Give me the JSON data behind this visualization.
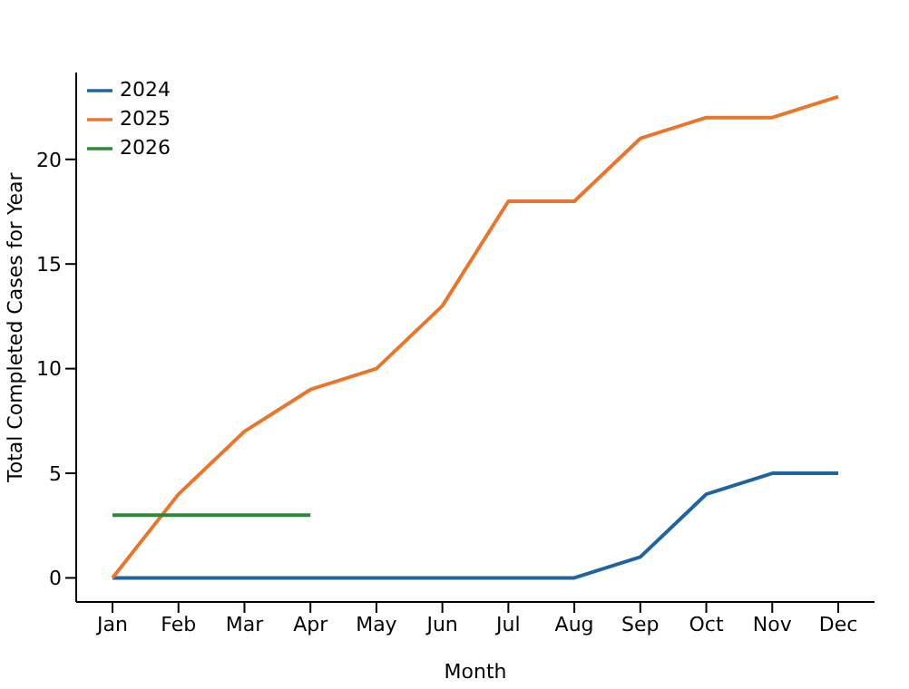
{
  "chart_data": {
    "type": "line",
    "xlabel": "Month",
    "ylabel": "Total Completed Cases for Year",
    "categories": [
      "Jan",
      "Feb",
      "Mar",
      "Apr",
      "May",
      "Jun",
      "Jul",
      "Aug",
      "Sep",
      "Oct",
      "Nov",
      "Dec"
    ],
    "series": [
      {
        "name": "2024",
        "color": "#1f63a3",
        "values": [
          0,
          0,
          0,
          0,
          0,
          0,
          0,
          0,
          1,
          4,
          5,
          5
        ]
      },
      {
        "name": "2025",
        "color": "#e8762d",
        "values": [
          0,
          4,
          7,
          9,
          10,
          13,
          18,
          18,
          21,
          22,
          22,
          23
        ]
      },
      {
        "name": "2026",
        "color": "#2a8a3a",
        "values": [
          3,
          3,
          3,
          3,
          null,
          null,
          null,
          null,
          null,
          null,
          null,
          null
        ]
      }
    ],
    "ylim": [
      -1.15,
      24.15
    ],
    "yticks": [
      0,
      5,
      10,
      15,
      20
    ],
    "grid": false,
    "legend": "top left",
    "marker": "none",
    "line_style": "solid"
  }
}
